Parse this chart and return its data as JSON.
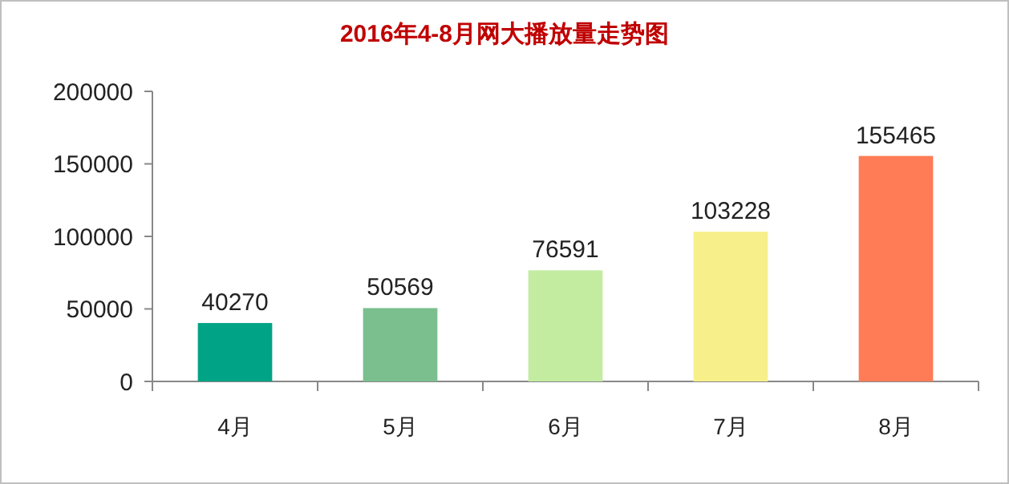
{
  "chart_data": {
    "type": "bar",
    "title": "2016年4-8月网大播放量走势图",
    "categories": [
      "4月",
      "5月",
      "6月",
      "7月",
      "8月"
    ],
    "values": [
      40270,
      50569,
      76591,
      103228,
      155465
    ],
    "colors": [
      "#00a386",
      "#7bbf8e",
      "#c3eca0",
      "#f7f08a",
      "#ff7c56"
    ],
    "ylim": [
      0,
      200000
    ],
    "yticks": [
      0,
      50000,
      100000,
      150000,
      200000
    ],
    "grid": false,
    "data_labels": true
  }
}
